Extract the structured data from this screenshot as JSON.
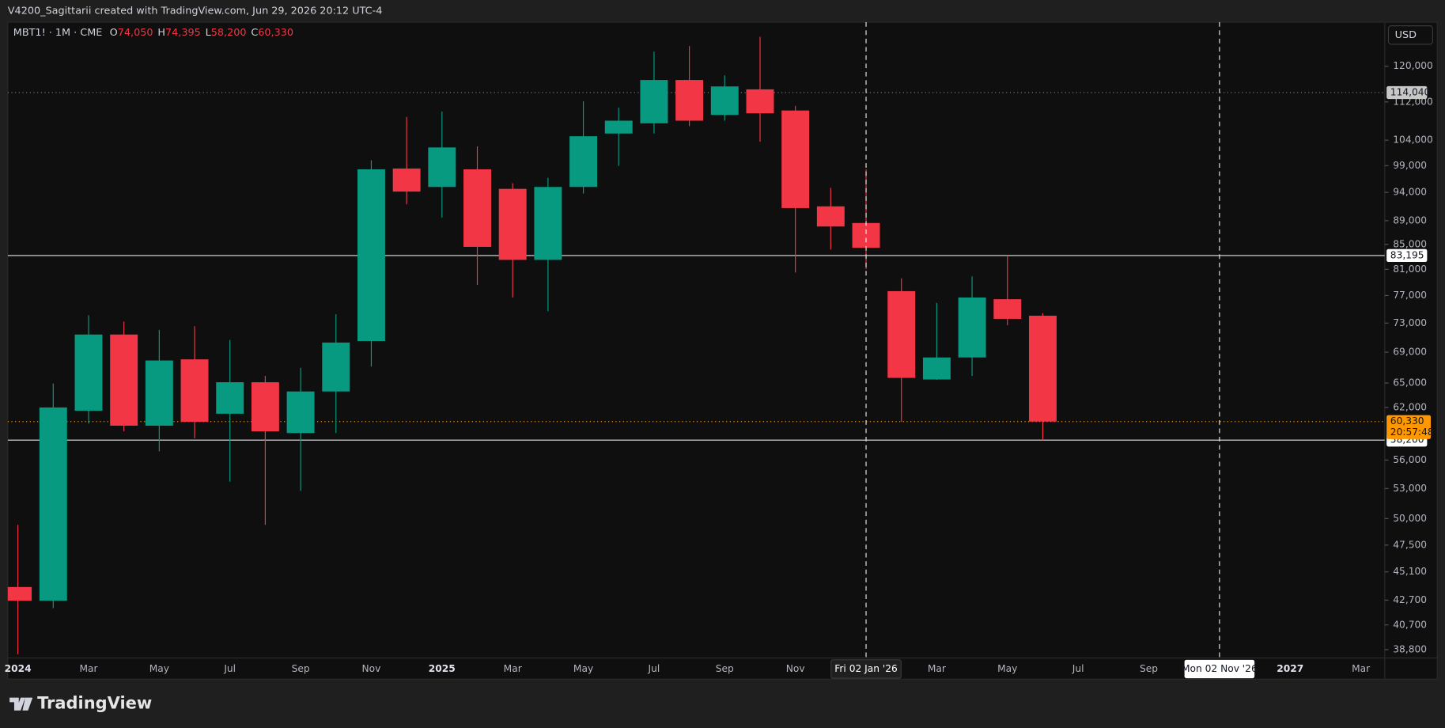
{
  "header": {
    "text": "V4200_Sagittarii created with TradingView.com, Jun 29, 2026 20:12 UTC-4"
  },
  "footer": {
    "brand": "TradingView"
  },
  "chart_data": {
    "type": "candlestick",
    "symbol": "MBT1! · 1M · CME",
    "ohlc_legend": [
      {
        "key": "O",
        "value": "74,050"
      },
      {
        "key": "H",
        "value": "74,395"
      },
      {
        "key": "L",
        "value": "58,200"
      },
      {
        "key": "C",
        "value": "60,330"
      }
    ],
    "currency": "USD",
    "log_scale": true,
    "up_color": "#089981",
    "down_color": "#f23645",
    "categories": [
      "2024",
      null,
      "Mar",
      null,
      "May",
      null,
      "Jul",
      null,
      "Sep",
      null,
      "Nov",
      null,
      "2025",
      null,
      "Mar",
      null,
      "May",
      null,
      "Jul",
      null,
      "Sep",
      null,
      "Nov",
      null,
      null,
      null,
      "Mar",
      null,
      "May",
      null,
      "Jul",
      null,
      "Sep",
      null,
      null,
      null,
      "2027",
      null,
      "Mar"
    ],
    "open": [
      43800,
      42650,
      61600,
      71400,
      59850,
      68050,
      61250,
      65100,
      59000,
      63950,
      70500,
      98450,
      95000,
      98300,
      94650,
      82500,
      95000,
      105350,
      107450,
      116850,
      109200,
      114750,
      110150,
      91500,
      88600,
      77650,
      65450,
      68300,
      76450,
      74050,
      null,
      null,
      null,
      null,
      null,
      null,
      null,
      null,
      null
    ],
    "high": [
      49400,
      64950,
      74100,
      73200,
      72050,
      72550,
      70650,
      65900,
      66950,
      74250,
      100050,
      108800,
      109950,
      102750,
      95700,
      96700,
      112150,
      110750,
      123450,
      124800,
      117900,
      127050,
      111150,
      94850,
      98300,
      79600,
      75900,
      79900,
      83195,
      74395,
      null,
      null,
      null,
      null,
      null,
      null,
      null,
      null,
      null
    ],
    "low": [
      38450,
      42050,
      60100,
      59200,
      56950,
      58400,
      53700,
      49400,
      52750,
      59000,
      67100,
      91850,
      89550,
      78600,
      76700,
      74700,
      93800,
      98950,
      105350,
      106850,
      108000,
      103700,
      80500,
      84150,
      81050,
      60300,
      65400,
      65900,
      72700,
      58200,
      null,
      null,
      null,
      null,
      null,
      null,
      null,
      null,
      null
    ],
    "close": [
      42650,
      62000,
      71400,
      59850,
      67900,
      60300,
      65100,
      59200,
      63950,
      70300,
      98300,
      94150,
      102550,
      84600,
      82500,
      95000,
      104800,
      108000,
      116850,
      108000,
      115400,
      109550,
      91200,
      88000,
      84450,
      65650,
      68300,
      76700,
      73600,
      60330,
      null,
      null,
      null,
      null,
      null,
      null,
      null,
      null,
      null
    ],
    "ylim": [
      38180,
      130700
    ],
    "yticks": [
      {
        "value": 38800,
        "label": "38,800"
      },
      {
        "value": 40700,
        "label": "40,700"
      },
      {
        "value": 42700,
        "label": "42,700"
      },
      {
        "value": 45100,
        "label": "45,100"
      },
      {
        "value": 47500,
        "label": "47,500"
      },
      {
        "value": 50000,
        "label": "50,000"
      },
      {
        "value": 53000,
        "label": "53,000"
      },
      {
        "value": 56000,
        "label": "56,000"
      },
      {
        "value": 62000,
        "label": "62,000"
      },
      {
        "value": 65000,
        "label": "65,000"
      },
      {
        "value": 69000,
        "label": "69,000"
      },
      {
        "value": 73000,
        "label": "73,000"
      },
      {
        "value": 77000,
        "label": "77,000"
      },
      {
        "value": 81000,
        "label": "81,000"
      },
      {
        "value": 85000,
        "label": "85,000"
      },
      {
        "value": 89000,
        "label": "89,000"
      },
      {
        "value": 94000,
        "label": "94,000"
      },
      {
        "value": 99000,
        "label": "99,000"
      },
      {
        "value": 104000,
        "label": "104,000"
      },
      {
        "value": 112000,
        "label": "112,000"
      },
      {
        "value": 120000,
        "label": "120,000"
      }
    ],
    "price_lines": [
      {
        "value": 114040,
        "label": "114,040",
        "style": "dotted"
      },
      {
        "value": 83195,
        "label": "83,195",
        "style": "solid"
      },
      {
        "value": 58200,
        "label": "58,200",
        "style": "solid"
      }
    ],
    "last_price": {
      "value": 60330,
      "label": "60,330",
      "countdown": "20:57:48",
      "color": "#ff9800"
    },
    "vertical_lines": [
      {
        "at": 24,
        "label": "Fri 02 Jan '26",
        "style": "dark"
      },
      {
        "at": 34,
        "label": "Mon 02 Nov '26",
        "style": "light"
      }
    ]
  }
}
